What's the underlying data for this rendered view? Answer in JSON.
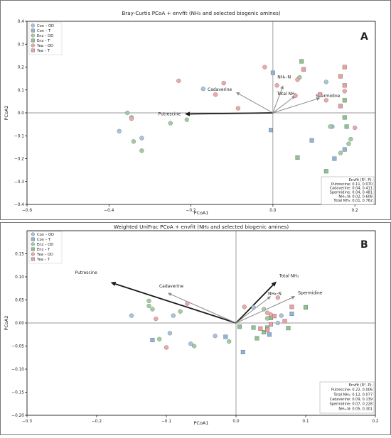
{
  "colors": {
    "con_od": "#a9c4e0",
    "con_t": "#8fb4dc",
    "enz_od": "#9fcf9f",
    "enz_t": "#8cc48c",
    "yea_od": "#f0a8a8",
    "yea_t": "#ec9f9f",
    "arrow_grey": "#8a8a8a",
    "arrow_dark": "#1a1a1a"
  },
  "chart_data": [
    {
      "type": "scatter",
      "title": "Bray-Curtis PCoA + envfit (NH₃ and selected biogenic amines)",
      "panel_label": "A",
      "xlabel": "PCoA1",
      "ylabel": "PCoA2",
      "xlim": [
        -0.6,
        0.25
      ],
      "ylim": [
        -0.4,
        0.4
      ],
      "xticks": [
        -0.6,
        -0.4,
        -0.2,
        0.0,
        0.2
      ],
      "yticks": [
        -0.4,
        -0.3,
        -0.2,
        -0.1,
        0.0,
        0.1,
        0.2,
        0.3,
        0.4
      ],
      "xtick_labels": [
        "−0.6",
        "−0.4",
        "−0.2",
        "0.0",
        "0.2"
      ],
      "ytick_labels": [
        "−0.4",
        "−0.3",
        "−0.2",
        "−0.1",
        "0.0",
        "0.1",
        "0.2",
        "0.3",
        "0.4"
      ],
      "grid": false,
      "legend_position": "top-left",
      "legend": [
        "Con – OD",
        "Con – T",
        "Enz – OD",
        "Enz – T",
        "Yea – OD",
        "Yea – T"
      ],
      "series": [
        {
          "name": "Con – OD",
          "color_key": "con_od",
          "marker": "circle",
          "points": [
            [
              -0.375,
              -0.08
            ],
            [
              -0.345,
              -0.02
            ],
            [
              -0.32,
              -0.11
            ],
            [
              -0.17,
              0.105
            ],
            [
              0.145,
              -0.06
            ],
            [
              0.13,
              0.135
            ]
          ]
        },
        {
          "name": "Con – T",
          "color_key": "con_t",
          "marker": "square",
          "points": [
            [
              0.0,
              0.175
            ],
            [
              -0.005,
              -0.075
            ],
            [
              0.095,
              -0.12
            ],
            [
              0.15,
              -0.2
            ],
            [
              0.175,
              -0.16
            ]
          ]
        },
        {
          "name": "Enz – OD",
          "color_key": "enz_od",
          "marker": "circle",
          "points": [
            [
              -0.355,
              0.0
            ],
            [
              -0.34,
              -0.125
            ],
            [
              -0.32,
              -0.165
            ],
            [
              -0.25,
              -0.045
            ],
            [
              -0.21,
              -0.03
            ],
            [
              0.065,
              0.155
            ],
            [
              0.14,
              -0.06
            ],
            [
              0.165,
              -0.175
            ],
            [
              0.185,
              -0.135
            ],
            [
              0.19,
              -0.115
            ]
          ]
        },
        {
          "name": "Enz – T",
          "color_key": "enz_t",
          "marker": "square",
          "points": [
            [
              0.07,
              0.225
            ],
            [
              0.06,
              -0.195
            ],
            [
              0.13,
              -0.255
            ],
            [
              0.175,
              0.055
            ],
            [
              0.175,
              -0.02
            ],
            [
              0.18,
              -0.06
            ]
          ]
        },
        {
          "name": "Yea – OD",
          "color_key": "yea_od",
          "marker": "circle",
          "points": [
            [
              -0.345,
              -0.025
            ],
            [
              -0.23,
              0.14
            ],
            [
              -0.14,
              0.08
            ],
            [
              -0.12,
              0.13
            ],
            [
              -0.085,
              0.02
            ],
            [
              -0.02,
              0.2
            ],
            [
              0.01,
              0.12
            ],
            [
              0.06,
              0.145
            ],
            [
              0.055,
              0.075
            ],
            [
              0.13,
              0.055
            ],
            [
              0.2,
              -0.065
            ],
            [
              0.175,
              0.095
            ]
          ]
        },
        {
          "name": "Yea – T",
          "color_key": "yea_t",
          "marker": "square",
          "points": [
            [
              0.075,
              0.19
            ],
            [
              0.115,
              0.08
            ],
            [
              0.175,
              0.2
            ],
            [
              0.165,
              0.16
            ],
            [
              0.175,
              0.12
            ],
            [
              0.165,
              0.03
            ]
          ]
        }
      ],
      "vectors": [
        {
          "label": "Putrescine",
          "x": -0.215,
          "y": -0.005,
          "weight": "bold"
        },
        {
          "label": "Cadaverine",
          "x": -0.09,
          "y": 0.09,
          "weight": "normal"
        },
        {
          "label": "NH₄–N",
          "x": 0.025,
          "y": 0.12,
          "weight": "normal"
        },
        {
          "label": "Total NH₃",
          "x": 0.055,
          "y": 0.075,
          "weight": "normal"
        },
        {
          "label": "Spermidine",
          "x": 0.115,
          "y": 0.065,
          "weight": "normal"
        }
      ],
      "envfit_box": {
        "lines": [
          "Envfit (R², P):",
          "Putrescine: 0.11, 0.070",
          "Cadaverine: 0.04, 0.411",
          "Spermidine: 0.04, 0.481",
          "NH₄–N: 0.02, 0.608",
          "Total NH₃: 0.01, 0.762"
        ]
      }
    },
    {
      "type": "scatter",
      "title": "Weighted UniFrac PCoA + envfit (NH₃ and selected biogenic amines)",
      "panel_label": "B",
      "xlabel": "PCoA1",
      "ylabel": "PCoA2",
      "xlim": [
        -0.3,
        0.2
      ],
      "ylim": [
        -0.2,
        0.2
      ],
      "xticks": [
        -0.3,
        -0.2,
        -0.1,
        0.0,
        0.1,
        0.2
      ],
      "yticks": [
        -0.2,
        -0.15,
        -0.1,
        -0.05,
        0.0,
        0.05,
        0.1,
        0.15
      ],
      "xtick_labels": [
        "−0.3",
        "−0.2",
        "−0.1",
        "0.0",
        "0.1",
        "0.2"
      ],
      "ytick_labels": [
        "−0.20",
        "−0.15",
        "−0.10",
        "−0.05",
        "0.00",
        "0.05",
        "0.10",
        "0.15"
      ],
      "grid": false,
      "legend_position": "top-left",
      "legend": [
        "Con – OD",
        "Con – T",
        "Enz – OD",
        "Enz – T",
        "Yea – OD",
        "Yea – T"
      ],
      "series": [
        {
          "name": "Con – OD",
          "color_key": "con_od",
          "marker": "circle",
          "points": [
            [
              -0.15,
              0.016
            ],
            [
              -0.09,
              0.016
            ],
            [
              -0.095,
              -0.022
            ],
            [
              -0.03,
              -0.028
            ],
            [
              -0.065,
              -0.045
            ],
            [
              0.025,
              0.034
            ],
            [
              0.06,
              0.0
            ],
            [
              0.065,
              0.016
            ]
          ]
        },
        {
          "name": "Con – T",
          "color_key": "con_t",
          "marker": "square",
          "points": [
            [
              -0.12,
              -0.037
            ],
            [
              -0.015,
              -0.03
            ],
            [
              0.01,
              -0.063
            ],
            [
              0.048,
              -0.025
            ],
            [
              0.08,
              0.02
            ],
            [
              0.1,
              0.034
            ]
          ]
        },
        {
          "name": "Enz – OD",
          "color_key": "enz_od",
          "marker": "circle",
          "points": [
            [
              -0.125,
              0.048
            ],
            [
              -0.125,
              0.037
            ],
            [
              -0.12,
              0.03
            ],
            [
              -0.11,
              -0.035
            ],
            [
              -0.08,
              0.025
            ],
            [
              -0.06,
              -0.05
            ],
            [
              -0.01,
              -0.04
            ],
            [
              0.04,
              0.03
            ],
            [
              0.045,
              0.01
            ]
          ]
        },
        {
          "name": "Enz – T",
          "color_key": "enz_t",
          "marker": "square",
          "points": [
            [
              0.005,
              -0.008
            ],
            [
              0.025,
              -0.01
            ],
            [
              0.03,
              -0.033
            ],
            [
              0.04,
              -0.02
            ],
            [
              0.045,
              -0.01
            ],
            [
              0.05,
              0.011
            ],
            [
              0.075,
              -0.011
            ],
            [
              0.1,
              0.034
            ]
          ]
        },
        {
          "name": "Yea – OD",
          "color_key": "yea_od",
          "marker": "circle",
          "points": [
            [
              -0.115,
              0.009
            ],
            [
              -0.07,
              0.042
            ],
            [
              -0.1,
              -0.053
            ],
            [
              0.012,
              0.035
            ],
            [
              0.045,
              0.022
            ],
            [
              0.05,
              0.018
            ],
            [
              0.06,
              0.055
            ]
          ]
        },
        {
          "name": "Yea – T",
          "color_key": "yea_t",
          "marker": "square",
          "points": [
            [
              0.035,
              -0.012
            ],
            [
              0.045,
              -0.015
            ],
            [
              0.05,
              -0.003
            ],
            [
              0.055,
              0.015
            ],
            [
              0.08,
              0.035
            ],
            [
              0.07,
              0.004
            ]
          ]
        }
      ],
      "vectors": [
        {
          "label": "Putrescine",
          "x": -0.18,
          "y": 0.088,
          "weight": "bold"
        },
        {
          "label": "Cadaverine",
          "x": -0.098,
          "y": 0.065,
          "weight": "normal"
        },
        {
          "label": "Total NH₃",
          "x": 0.058,
          "y": 0.09,
          "weight": "bold"
        },
        {
          "label": "NH₄–N",
          "x": 0.05,
          "y": 0.058,
          "weight": "normal"
        },
        {
          "label": "Spermidine",
          "x": 0.085,
          "y": 0.058,
          "weight": "normal"
        }
      ],
      "envfit_box": {
        "lines": [
          "Envfit (R², P):",
          "Putrescine: 0.22, 0.006",
          "Total NH₃: 0.12, 0.077",
          "Cadaverine: 0.09, 0.139",
          "Spermidine: 0.07, 0.228",
          "NH₄–N: 0.05, 0.301"
        ]
      }
    }
  ]
}
